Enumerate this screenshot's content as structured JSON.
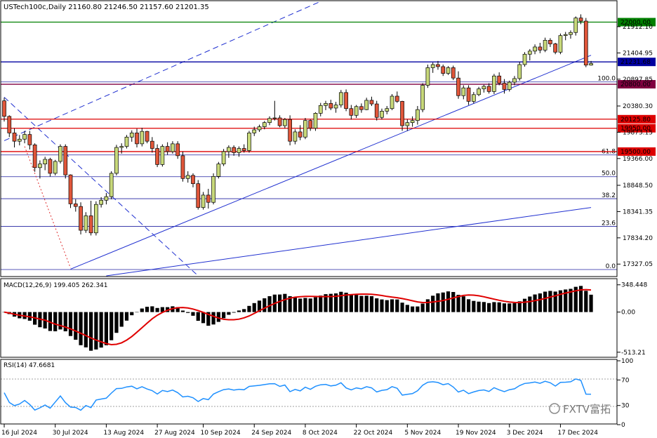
{
  "header": {
    "title": "USTech100c,Daily  21160.80 21246.50 21157.60 21201.35"
  },
  "watermark": "FXTV富拓",
  "chart_data": [
    {
      "type": "candlestick",
      "symbol": "USTech100c",
      "timeframe": "Daily",
      "ylim": [
        17100,
        22400
      ],
      "y_ticks": [
        {
          "value": 17327.05,
          "label": "17327.05"
        },
        {
          "value": 17834.2,
          "label": "17834.20"
        },
        {
          "value": 18341.35,
          "label": "18341.35"
        },
        {
          "value": 18848.5,
          "label": "18848.50"
        },
        {
          "value": 19366.0,
          "label": "19366.00"
        },
        {
          "value": 19873.15,
          "label": "19873.15"
        },
        {
          "value": 20380.3,
          "label": "20380.30"
        },
        {
          "value": 20897.85,
          "label": "20897.85"
        },
        {
          "value": 21404.95,
          "label": "21404.95"
        },
        {
          "value": 21912.1,
          "label": "21912.10"
        }
      ],
      "x_labels": [
        {
          "index": 0,
          "label": "16 Jul 2024"
        },
        {
          "index": 10,
          "label": "30 Jul 2024"
        },
        {
          "index": 20,
          "label": "13 Aug 2024"
        },
        {
          "index": 30,
          "label": "27 Aug 2024"
        },
        {
          "index": 39,
          "label": "10 Sep 2024"
        },
        {
          "index": 49,
          "label": "24 Sep 2024"
        },
        {
          "index": 59,
          "label": "8 Oct 2024"
        },
        {
          "index": 69,
          "label": "22 Oct 2024"
        },
        {
          "index": 79,
          "label": "5 Nov 2024"
        },
        {
          "index": 89,
          "label": "19 Nov 2024"
        },
        {
          "index": 99,
          "label": "3 Dec 2024"
        },
        {
          "index": 109,
          "label": "17 Dec 2024"
        }
      ],
      "price_levels": [
        {
          "value": 22000.0,
          "label": "22000.00",
          "color": "#008000"
        },
        {
          "value": 21231.68,
          "label": "21231.68",
          "color": "#0000a0"
        },
        {
          "value": 20800.0,
          "label": "20800.00",
          "color": "#800040"
        },
        {
          "value": 20125.8,
          "label": "20125.80",
          "color": "#dd0000"
        },
        {
          "value": 19950.0,
          "label": "19950.00",
          "color": "#dd0000"
        },
        {
          "value": 19500.0,
          "label": "19500.00",
          "color": "#dd0000"
        }
      ],
      "fib_levels": [
        {
          "value": 20845,
          "label": "100.0"
        },
        {
          "value": 19435,
          "label": "61.8"
        },
        {
          "value": 19015,
          "label": "50.0"
        },
        {
          "value": 18590,
          "label": "38.2"
        },
        {
          "value": 18055,
          "label": "23.6"
        },
        {
          "value": 17222,
          "label": "0.0"
        }
      ],
      "trendlines": [
        {
          "style": "solid",
          "points": [
            [
              13,
              17230
            ],
            [
              115,
              21360
            ]
          ]
        },
        {
          "style": "solid",
          "points": [
            [
              20,
              17100
            ],
            [
              115,
              18420
            ]
          ]
        },
        {
          "style": "dashed",
          "points": [
            [
              0,
              19710
            ],
            [
              62,
              22400
            ]
          ]
        },
        {
          "style": "dashed",
          "points": [
            [
              0,
              20550
            ],
            [
              38,
              17100
            ]
          ]
        },
        {
          "style": "dotted",
          "points": [
            [
              4,
              19600
            ],
            [
              13,
              17250
            ]
          ]
        }
      ],
      "candles": [
        [
          20480,
          20540,
          20080,
          20180
        ],
        [
          20180,
          20200,
          19780,
          19860
        ],
        [
          19860,
          19950,
          19580,
          19700
        ],
        [
          19700,
          19820,
          19620,
          19740
        ],
        [
          19740,
          19900,
          19660,
          19830
        ],
        [
          19830,
          19900,
          19540,
          19630
        ],
        [
          19630,
          19660,
          19110,
          19190
        ],
        [
          19190,
          19330,
          18980,
          19260
        ],
        [
          19260,
          19400,
          19140,
          19350
        ],
        [
          19350,
          19380,
          19020,
          19080
        ],
        [
          19080,
          19340,
          19040,
          19310
        ],
        [
          19310,
          19640,
          19270,
          19600
        ],
        [
          19600,
          19640,
          18980,
          19050
        ],
        [
          19050,
          19060,
          18410,
          18490
        ],
        [
          18490,
          18580,
          18340,
          18440
        ],
        [
          18440,
          18520,
          17900,
          17980
        ],
        [
          17980,
          18330,
          17930,
          18260
        ],
        [
          18260,
          18550,
          17880,
          17930
        ],
        [
          17930,
          18540,
          17880,
          18480
        ],
        [
          18480,
          18620,
          18420,
          18560
        ],
        [
          18560,
          18700,
          18480,
          18630
        ],
        [
          18630,
          19120,
          18580,
          19080
        ],
        [
          19080,
          19630,
          19040,
          19580
        ],
        [
          19580,
          19660,
          19460,
          19600
        ],
        [
          19600,
          19820,
          19560,
          19780
        ],
        [
          19780,
          19910,
          19690,
          19860
        ],
        [
          19860,
          19940,
          19580,
          19650
        ],
        [
          19650,
          19960,
          19600,
          19890
        ],
        [
          19890,
          19900,
          19660,
          19700
        ],
        [
          19700,
          19780,
          19480,
          19560
        ],
        [
          19560,
          19640,
          19200,
          19250
        ],
        [
          19250,
          19640,
          19210,
          19600
        ],
        [
          19600,
          19680,
          19440,
          19500
        ],
        [
          19500,
          19700,
          19460,
          19650
        ],
        [
          19650,
          19700,
          19360,
          19420
        ],
        [
          19420,
          19500,
          18920,
          18980
        ],
        [
          18980,
          19120,
          18900,
          19040
        ],
        [
          19040,
          19080,
          18810,
          18880
        ],
        [
          18880,
          18950,
          18380,
          18420
        ],
        [
          18420,
          18720,
          18380,
          18660
        ],
        [
          18660,
          18780,
          18400,
          18520
        ],
        [
          18520,
          19080,
          18480,
          19020
        ],
        [
          19020,
          19300,
          18980,
          19260
        ],
        [
          19260,
          19550,
          19220,
          19500
        ],
        [
          19500,
          19620,
          19380,
          19580
        ],
        [
          19580,
          19620,
          19420,
          19480
        ],
        [
          19480,
          19600,
          19400,
          19560
        ],
        [
          19560,
          19640,
          19480,
          19520
        ],
        [
          19520,
          19900,
          19480,
          19860
        ],
        [
          19860,
          19980,
          19800,
          19920
        ],
        [
          19920,
          20020,
          19880,
          19980
        ],
        [
          19980,
          20090,
          19930,
          20060
        ],
        [
          20060,
          20180,
          20010,
          20140
        ],
        [
          20140,
          20480,
          20100,
          20150
        ],
        [
          20150,
          20200,
          19970,
          20000
        ],
        [
          20000,
          20150,
          19950,
          20120
        ],
        [
          20120,
          20200,
          19620,
          19700
        ],
        [
          19700,
          19930,
          19640,
          19880
        ],
        [
          19880,
          20010,
          19720,
          19780
        ],
        [
          19780,
          20150,
          19740,
          20100
        ],
        [
          20100,
          20120,
          19900,
          19950
        ],
        [
          19950,
          20260,
          19900,
          20240
        ],
        [
          20240,
          20440,
          20180,
          20390
        ],
        [
          20390,
          20480,
          20300,
          20430
        ],
        [
          20430,
          20500,
          20300,
          20340
        ],
        [
          20340,
          20460,
          20250,
          20400
        ],
        [
          20400,
          20690,
          20350,
          20640
        ],
        [
          20640,
          20700,
          20280,
          20330
        ],
        [
          20330,
          20400,
          20120,
          20200
        ],
        [
          20200,
          20400,
          20150,
          20370
        ],
        [
          20370,
          20430,
          20250,
          20310
        ],
        [
          20310,
          20540,
          20300,
          20490
        ],
        [
          20490,
          20560,
          20380,
          20420
        ],
        [
          20420,
          20480,
          20100,
          20160
        ],
        [
          20160,
          20330,
          20120,
          20280
        ],
        [
          20280,
          20380,
          20220,
          20330
        ],
        [
          20330,
          20610,
          20300,
          20570
        ],
        [
          20570,
          20660,
          20440,
          20470
        ],
        [
          20470,
          20480,
          19900,
          20000
        ],
        [
          20000,
          20120,
          19900,
          20060
        ],
        [
          20060,
          20180,
          19980,
          20100
        ],
        [
          20100,
          20380,
          20020,
          20310
        ],
        [
          20310,
          20820,
          20260,
          20780
        ],
        [
          20780,
          21180,
          20730,
          21120
        ],
        [
          21120,
          21220,
          21020,
          21180
        ],
        [
          21180,
          21250,
          21080,
          21140
        ],
        [
          21140,
          21180,
          20960,
          21010
        ],
        [
          21010,
          21150,
          20980,
          21120
        ],
        [
          21120,
          21160,
          20880,
          20920
        ],
        [
          20920,
          21050,
          20520,
          20580
        ],
        [
          20580,
          20780,
          20510,
          20730
        ],
        [
          20730,
          20780,
          20400,
          20470
        ],
        [
          20470,
          20650,
          20430,
          20600
        ],
        [
          20600,
          20750,
          20570,
          20710
        ],
        [
          20710,
          20790,
          20640,
          20760
        ],
        [
          20760,
          20820,
          20620,
          20660
        ],
        [
          20660,
          21000,
          20610,
          20960
        ],
        [
          20960,
          21030,
          20780,
          20820
        ],
        [
          20820,
          20900,
          20620,
          20700
        ],
        [
          20700,
          20870,
          20660,
          20840
        ],
        [
          20840,
          20960,
          20780,
          20910
        ],
        [
          20910,
          21230,
          20870,
          21180
        ],
        [
          21180,
          21420,
          21140,
          21380
        ],
        [
          21380,
          21480,
          21260,
          21440
        ],
        [
          21440,
          21570,
          21380,
          21520
        ],
        [
          21520,
          21600,
          21400,
          21460
        ],
        [
          21460,
          21700,
          21420,
          21650
        ],
        [
          21650,
          21690,
          21520,
          21580
        ],
        [
          21580,
          21600,
          21380,
          21420
        ],
        [
          21420,
          21780,
          21380,
          21740
        ],
        [
          21740,
          21810,
          21650,
          21760
        ],
        [
          21760,
          21840,
          21680,
          21800
        ],
        [
          21800,
          22110,
          21740,
          22080
        ],
        [
          22080,
          22150,
          21960,
          22020
        ],
        [
          22020,
          22080,
          21130,
          21170
        ],
        [
          21170,
          21250,
          21160,
          21201
        ]
      ]
    },
    {
      "type": "macd",
      "title": "MACD(12,26,9) 199.405 262.341",
      "params": [
        12,
        26,
        9
      ],
      "main": 199.405,
      "signal": 262.341,
      "ylim": [
        -560,
        400
      ],
      "y_ticks": [
        {
          "value": 348.448,
          "label": "348.448"
        },
        {
          "value": 0,
          "label": "0.00"
        },
        {
          "value": -513.21,
          "label": "-513.21"
        }
      ]
    },
    {
      "type": "rsi",
      "title": "RSI(14) 47.6681",
      "period": 14,
      "value": 47.6681,
      "ylim": [
        0,
        100
      ],
      "levels": [
        70,
        30
      ],
      "y_ticks": [
        {
          "value": 100,
          "label": "100"
        },
        {
          "value": 70,
          "label": "70"
        },
        {
          "value": 30,
          "label": "30"
        },
        {
          "value": 0,
          "label": "0"
        }
      ]
    }
  ]
}
